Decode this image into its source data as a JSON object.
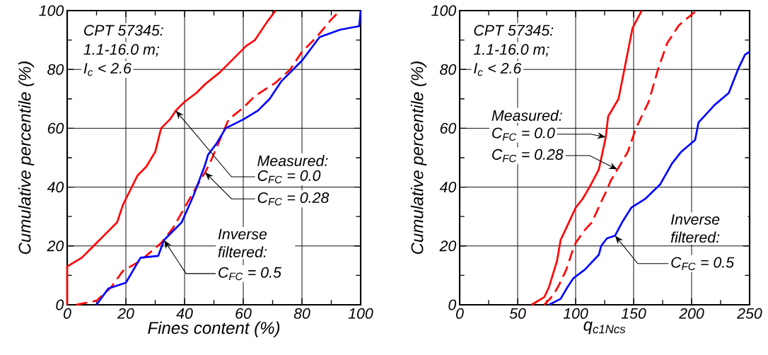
{
  "chart_data": [
    {
      "type": "line",
      "xlabel": "Fines content (%)",
      "ylabel": "Cumulative percentile (%)",
      "xlim": [
        0,
        100
      ],
      "ylim": [
        0,
        100
      ],
      "xticks": [
        0,
        {
          "value": 10,
          "label": null
        },
        20,
        {
          "value": 30,
          "label": null
        },
        40,
        {
          "value": 50,
          "label": null
        },
        60,
        {
          "value": 70,
          "label": null
        },
        80,
        {
          "value": 90,
          "label": null
        },
        100
      ],
      "yticks": [
        0,
        {
          "value": 10,
          "label": null
        },
        20,
        {
          "value": 30,
          "label": null
        },
        40,
        {
          "value": 50,
          "label": null
        },
        60,
        {
          "value": 70,
          "label": null
        },
        80,
        {
          "value": 90,
          "label": null
        },
        100
      ],
      "grid": true,
      "series": [
        {
          "color": "#ff0000",
          "line_style": "solid",
          "x": [
            0,
            0,
            5,
            9,
            13,
            17,
            19,
            20,
            24,
            27,
            30,
            32,
            35,
            37,
            40,
            44,
            47,
            52,
            55,
            61,
            64,
            68,
            71
          ],
          "values": [
            0,
            13,
            16,
            20,
            24,
            28,
            34,
            36,
            44,
            47,
            52,
            60,
            63,
            66,
            69,
            72,
            75,
            79,
            82,
            88,
            90,
            96,
            100
          ]
        },
        {
          "color": "#ff0000",
          "line_style": "dashed",
          "x": [
            3,
            10,
            15,
            19,
            25,
            32,
            36,
            40,
            44,
            47,
            49,
            52,
            55,
            60,
            64,
            71,
            76,
            80,
            85,
            90,
            93
          ],
          "values": [
            0,
            1.4,
            6,
            11.5,
            15,
            21,
            26,
            33,
            40,
            45,
            49,
            56,
            63,
            67,
            71,
            75.5,
            80,
            86,
            91,
            97,
            100
          ]
        },
        {
          "color": "#0000ff",
          "line_style": "solid",
          "x": [
            10,
            14,
            20,
            25,
            31,
            33,
            39,
            43,
            47,
            48,
            51,
            54,
            60,
            65,
            69,
            73,
            80,
            86,
            93,
            99.5,
            100
          ],
          "values": [
            0,
            5.5,
            7.5,
            16,
            16.6,
            22,
            28,
            37,
            47.6,
            51,
            55,
            60,
            63,
            66,
            70,
            76,
            83,
            91,
            93.5,
            94.7,
            100
          ]
        }
      ],
      "annotations": [
        "CPT 57345:",
        "1.1-16.0 m;",
        "I$_{c}$ < 2.6",
        "Measured:",
        {
          "text": "C$_{FC}$ = 0.0",
          "x": 37,
          "y": 66
        },
        {
          "text": "C$_{FC}$ = 0.28",
          "x": 47,
          "y": 45
        },
        "Inverse filtered:",
        {
          "text": "C$_{FC}$ = 0.5",
          "x": 33,
          "y": 22
        }
      ]
    },
    {
      "type": "line",
      "xlabel": "q$_{c1Ncs}$",
      "ylabel": "Cumulative percentile (%)",
      "xlim": [
        0,
        250
      ],
      "ylim": [
        0,
        100
      ],
      "xticks": [
        0,
        {
          "value": 25,
          "label": null
        },
        50,
        {
          "value": 75,
          "label": null
        },
        100,
        {
          "value": 125,
          "label": null
        },
        150,
        {
          "value": 175,
          "label": null
        },
        200,
        {
          "value": 225,
          "label": null
        },
        250
      ],
      "yticks": [
        0,
        {
          "value": 10,
          "label": null
        },
        20,
        {
          "value": 30,
          "label": null
        },
        40,
        {
          "value": 50,
          "label": null
        },
        60,
        {
          "value": 70,
          "label": null
        },
        80,
        {
          "value": 90,
          "label": null
        },
        100
      ],
      "grid": true,
      "series": [
        {
          "color": "#ff0000",
          "line_style": "solid",
          "x": [
            62,
            73,
            77,
            84,
            87,
            93,
            100,
            106,
            112,
            120,
            126,
            128,
            137,
            142,
            146,
            149,
            157
          ],
          "values": [
            0,
            2.6,
            6,
            15,
            22,
            27,
            33,
            36,
            40,
            46,
            57,
            64,
            70,
            80,
            88,
            94,
            100
          ]
        },
        {
          "color": "#ff0000",
          "line_style": "dashed",
          "x": [
            73,
            81,
            86,
            92,
            97,
            100,
            107,
            114,
            122,
            127,
            130,
            136,
            145,
            152,
            163,
            171,
            179,
            189,
            201,
            205
          ],
          "values": [
            0,
            3.4,
            7,
            12,
            18,
            21,
            25,
            28,
            35,
            39,
            42,
            46,
            52,
            60,
            69,
            80,
            89,
            95,
            99,
            100
          ]
        },
        {
          "color": "#0000ff",
          "line_style": "solid",
          "x": [
            77,
            87,
            93,
            98,
            108,
            120,
            122,
            127,
            134,
            140,
            148,
            160,
            173,
            183,
            191,
            203,
            206,
            220,
            232,
            240,
            246,
            250
          ],
          "values": [
            0,
            2,
            6,
            9,
            12,
            17,
            20,
            22.6,
            23.5,
            28,
            33,
            36,
            41,
            48,
            52,
            56,
            62,
            68,
            72,
            80,
            85,
            86
          ]
        }
      ],
      "annotations": [
        "CPT 57345:",
        "1.1-16.0 m;",
        "I$_{c}$ < 2.6",
        "Measured:",
        {
          "text": "C$_{FC}$ = 0.0",
          "x": 126,
          "y": 57
        },
        {
          "text": "C$_{FC}$ = 0.28",
          "x": 136,
          "y": 46
        },
        "Inverse filtered:",
        {
          "text": "C$_{FC}$ = 0.5",
          "x": 134,
          "y": 23.5
        }
      ]
    }
  ]
}
